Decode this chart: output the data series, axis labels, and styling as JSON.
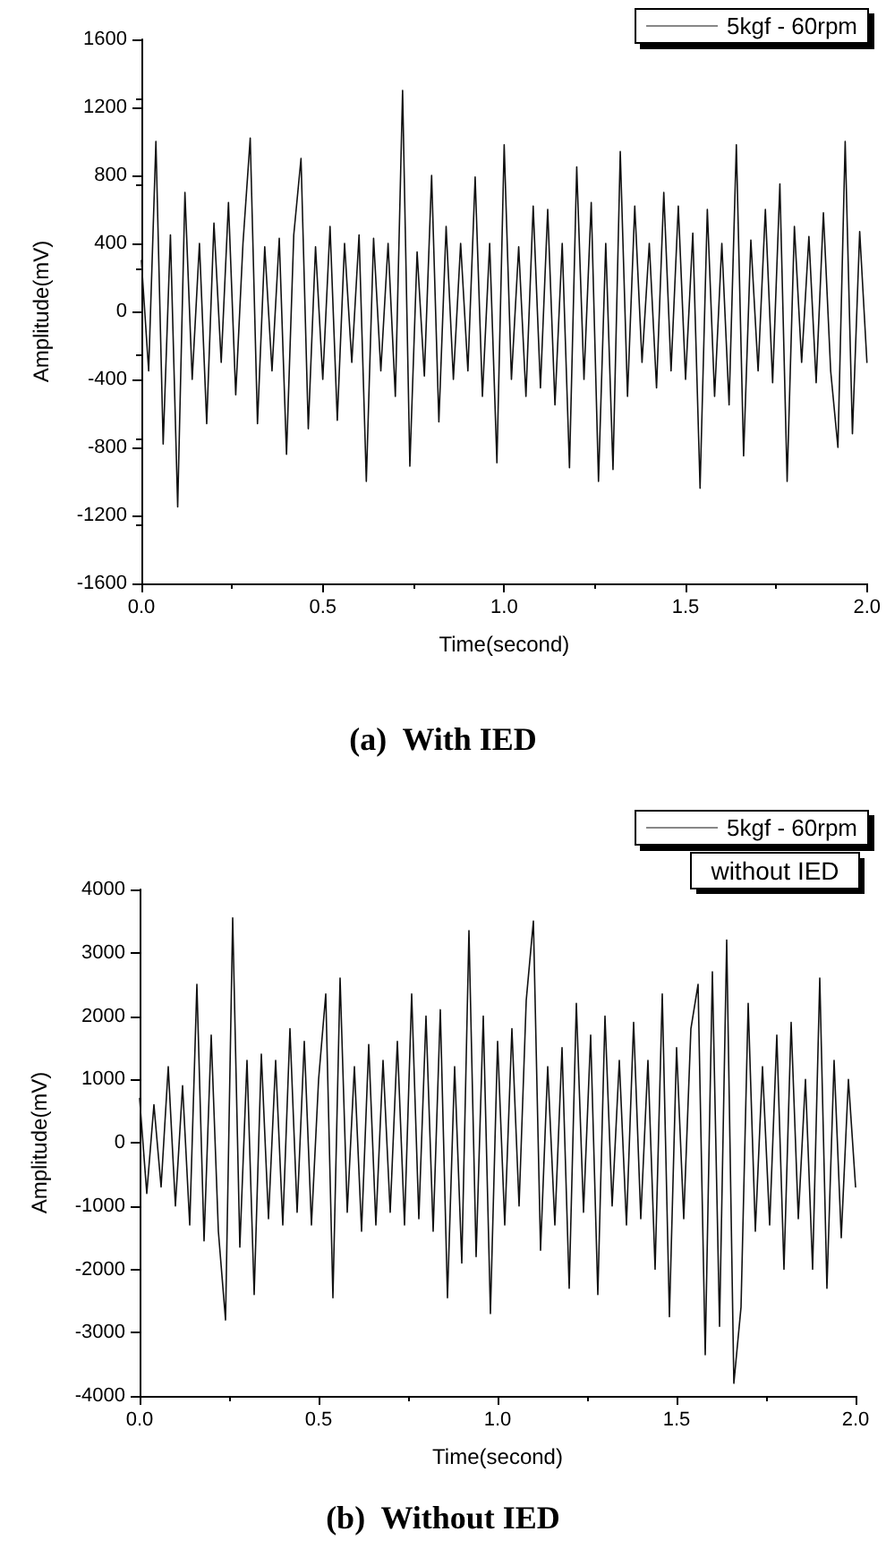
{
  "chart_data": [
    {
      "type": "line",
      "title": "(a)  With IED",
      "xlabel": "Time(second)",
      "ylabel": "Amplitude(mV)",
      "legend": "top right",
      "marker": "none",
      "line_style": "solid",
      "xlim": [
        0,
        2
      ],
      "xticks": [
        {
          "value": 0,
          "label": "0.0"
        },
        {
          "value": 0.5,
          "label": "0.5"
        },
        {
          "value": 1,
          "label": "1.0"
        },
        {
          "value": 1.5,
          "label": "1.5"
        },
        {
          "value": 2,
          "label": "2.0"
        }
      ],
      "ylim": [
        -1600,
        1600
      ],
      "yticks": [
        -1600,
        -1200,
        -800,
        -400,
        0,
        400,
        800,
        1200,
        1600
      ],
      "x": [
        0,
        0.02,
        0.04,
        0.06,
        0.08,
        0.1,
        0.12,
        0.14,
        0.16,
        0.18,
        0.2,
        0.22,
        0.24,
        0.26,
        0.28,
        0.3,
        0.32,
        0.34,
        0.36,
        0.38,
        0.4,
        0.42,
        0.44,
        0.46,
        0.48,
        0.5,
        0.52,
        0.54,
        0.56,
        0.58,
        0.6,
        0.62,
        0.64,
        0.66,
        0.68,
        0.7,
        0.72,
        0.74,
        0.76,
        0.78,
        0.8,
        0.82,
        0.84,
        0.86,
        0.88,
        0.9,
        0.92,
        0.94,
        0.96,
        0.98,
        1,
        1.02,
        1.04,
        1.06,
        1.08,
        1.1,
        1.12,
        1.14,
        1.16,
        1.18,
        1.2,
        1.22,
        1.24,
        1.26,
        1.28,
        1.3,
        1.32,
        1.34,
        1.36,
        1.38,
        1.4,
        1.42,
        1.44,
        1.46,
        1.48,
        1.5,
        1.52,
        1.54,
        1.56,
        1.58,
        1.6,
        1.62,
        1.64,
        1.66,
        1.68,
        1.7,
        1.72,
        1.74,
        1.76,
        1.78,
        1.8,
        1.82,
        1.84,
        1.86,
        1.88,
        1.9,
        1.92,
        1.94,
        1.96,
        1.98,
        2
      ],
      "series": [
        {
          "name": "5kgf - 60rpm",
          "color": "#111111",
          "values": [
            300,
            -350,
            1000,
            -780,
            450,
            -1150,
            700,
            -400,
            400,
            -660,
            520,
            -300,
            640,
            -490,
            400,
            1020,
            -660,
            380,
            -350,
            430,
            -840,
            450,
            900,
            -690,
            380,
            -400,
            500,
            -640,
            400,
            -300,
            450,
            -1000,
            430,
            -350,
            400,
            -500,
            1300,
            -910,
            350,
            -380,
            800,
            -650,
            500,
            -400,
            400,
            -350,
            790,
            -500,
            400,
            -890,
            980,
            -400,
            380,
            -500,
            620,
            -450,
            600,
            -550,
            400,
            -920,
            850,
            -400,
            640,
            -1000,
            400,
            -930,
            940,
            -500,
            620,
            -300,
            400,
            -450,
            700,
            -350,
            620,
            -400,
            460,
            -1040,
            600,
            -500,
            400,
            -550,
            980,
            -850,
            420,
            -350,
            600,
            -420,
            750,
            -1000,
            500,
            -300,
            440,
            -420,
            580,
            -350,
            -800,
            1000,
            -720,
            470,
            -300
          ]
        }
      ]
    },
    {
      "type": "line",
      "title": "(b)  Without IED",
      "xlabel": "Time(second)",
      "ylabel": "Amplitude(mV)",
      "legend": "top right",
      "marker": "none",
      "line_style": "solid",
      "annotations": [
        "without IED"
      ],
      "xlim": [
        0,
        2
      ],
      "xticks": [
        {
          "value": 0,
          "label": "0.0"
        },
        {
          "value": 0.5,
          "label": "0.5"
        },
        {
          "value": 1,
          "label": "1.0"
        },
        {
          "value": 1.5,
          "label": "1.5"
        },
        {
          "value": 2,
          "label": "2.0"
        }
      ],
      "ylim": [
        -4000,
        4000
      ],
      "yticks": [
        -4000,
        -3000,
        -2000,
        -1000,
        0,
        1000,
        2000,
        3000,
        4000
      ],
      "x": [
        0,
        0.02,
        0.04,
        0.06,
        0.08,
        0.1,
        0.12,
        0.14,
        0.16,
        0.18,
        0.2,
        0.22,
        0.24,
        0.26,
        0.28,
        0.3,
        0.32,
        0.34,
        0.36,
        0.38,
        0.4,
        0.42,
        0.44,
        0.46,
        0.48,
        0.5,
        0.52,
        0.54,
        0.56,
        0.58,
        0.6,
        0.62,
        0.64,
        0.66,
        0.68,
        0.7,
        0.72,
        0.74,
        0.76,
        0.78,
        0.8,
        0.82,
        0.84,
        0.86,
        0.88,
        0.9,
        0.92,
        0.94,
        0.96,
        0.98,
        1,
        1.02,
        1.04,
        1.06,
        1.08,
        1.1,
        1.12,
        1.14,
        1.16,
        1.18,
        1.2,
        1.22,
        1.24,
        1.26,
        1.28,
        1.3,
        1.32,
        1.34,
        1.36,
        1.38,
        1.4,
        1.42,
        1.44,
        1.46,
        1.48,
        1.5,
        1.52,
        1.54,
        1.56,
        1.58,
        1.6,
        1.62,
        1.64,
        1.66,
        1.68,
        1.7,
        1.72,
        1.74,
        1.76,
        1.78,
        1.8,
        1.82,
        1.84,
        1.86,
        1.88,
        1.9,
        1.92,
        1.94,
        1.96,
        1.98,
        2
      ],
      "series": [
        {
          "name": "5kgf - 60rpm",
          "color": "#111111",
          "values": [
            700,
            -800,
            600,
            -700,
            1200,
            -1000,
            900,
            -1300,
            2500,
            -1550,
            1700,
            -1400,
            -2800,
            3550,
            -1650,
            1300,
            -2400,
            1400,
            -1200,
            1300,
            -1300,
            1800,
            -1100,
            1600,
            -1300,
            1000,
            2350,
            -2450,
            2600,
            -1100,
            1200,
            -1400,
            1550,
            -1300,
            1300,
            -1100,
            1600,
            -1300,
            2350,
            -1200,
            2000,
            -1400,
            2100,
            -2450,
            1200,
            -1900,
            3350,
            -1800,
            2000,
            -2700,
            1600,
            -1300,
            1800,
            -1000,
            2250,
            3500,
            -1700,
            1200,
            -1300,
            1500,
            -2300,
            2200,
            -1100,
            1700,
            -2400,
            2000,
            -1000,
            1300,
            -1300,
            1900,
            -1200,
            1300,
            -2000,
            2350,
            -2750,
            1500,
            -1200,
            1800,
            2500,
            -3350,
            2700,
            -2900,
            3200,
            -3800,
            -2600,
            2200,
            -1400,
            1200,
            -1300,
            1700,
            -2000,
            1900,
            -1200,
            1000,
            -2000,
            2600,
            -2300,
            1300,
            -1500,
            1000,
            -700
          ]
        }
      ]
    }
  ]
}
